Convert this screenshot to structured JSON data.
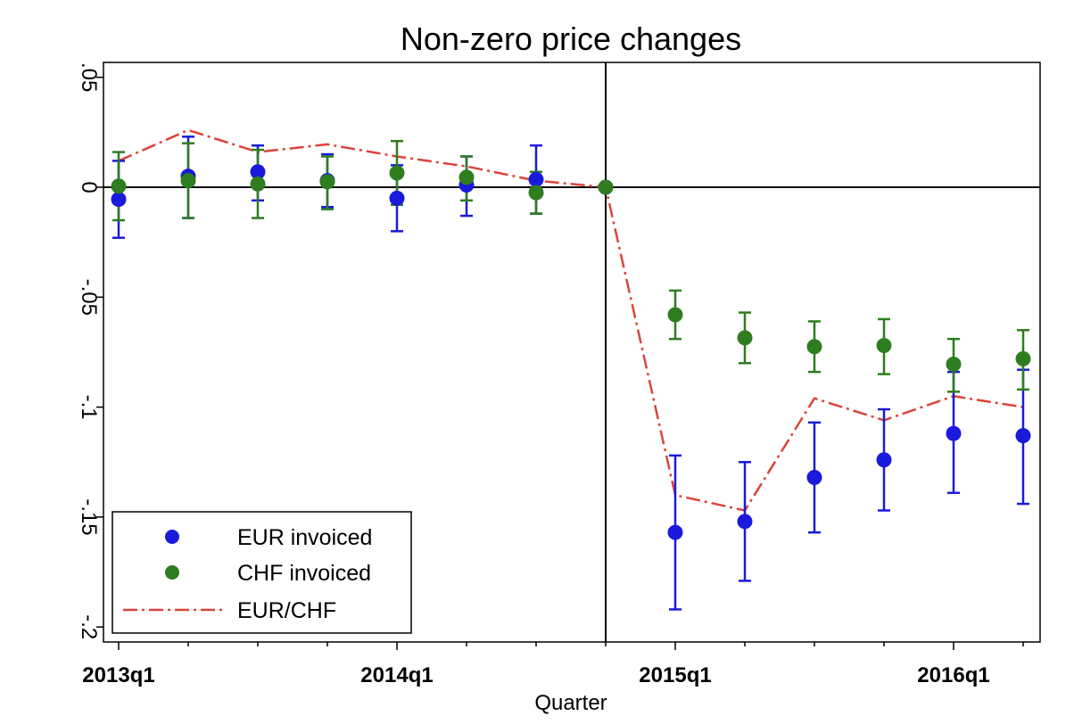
{
  "chart_data": {
    "type": "scatter",
    "title": "Non-zero price changes",
    "xlabel": "Quarter",
    "ylabel": "",
    "x_tick_labels": [
      "2013q1",
      "2014q1",
      "2015q1",
      "2016q1"
    ],
    "y_tick_labels": [
      ".05",
      "0",
      "-.05",
      "-.1",
      "-.15",
      "-.2"
    ],
    "y_tick_values": [
      0.05,
      0,
      -0.05,
      -0.1,
      -0.15,
      -0.2
    ],
    "ylim": [
      -0.2,
      0.05
    ],
    "x": [
      "2013q1",
      "2013q2",
      "2013q3",
      "2013q4",
      "2014q1",
      "2014q2",
      "2014q3",
      "2014q4",
      "2015q1",
      "2015q2",
      "2015q3",
      "2015q4",
      "2016q1",
      "2016q2"
    ],
    "reference_lines": {
      "vertical_at": "2014q4",
      "horizontal_at": 0
    },
    "legend_position": "bottom-left",
    "grid": false,
    "series": [
      {
        "name": "EUR invoiced",
        "kind": "points_with_ci",
        "color": "#1a1adc",
        "values": [
          -0.0055,
          0.005,
          0.007,
          0.003,
          -0.005,
          0.001,
          0.0035,
          0,
          -0.157,
          -0.152,
          -0.132,
          -0.124,
          -0.112,
          -0.113
        ],
        "ci_low": [
          -0.023,
          -0.014,
          -0.006,
          -0.009,
          -0.02,
          -0.013,
          -0.012,
          0,
          -0.192,
          -0.179,
          -0.157,
          -0.147,
          -0.139,
          -0.144
        ],
        "ci_high": [
          0.012,
          0.023,
          0.019,
          0.015,
          0.01,
          0.014,
          0.019,
          0,
          -0.122,
          -0.125,
          -0.107,
          -0.101,
          -0.084,
          -0.083
        ]
      },
      {
        "name": "CHF invoiced",
        "kind": "points_with_ci",
        "color": "#2e7d1f",
        "values": [
          0.0005,
          0.003,
          0.0015,
          0.0025,
          0.0065,
          0.0045,
          -0.0025,
          0,
          -0.058,
          -0.0685,
          -0.0725,
          -0.072,
          -0.0805,
          -0.078
        ],
        "ci_low": [
          -0.015,
          -0.014,
          -0.014,
          -0.01,
          -0.008,
          -0.006,
          -0.012,
          0,
          -0.069,
          -0.08,
          -0.084,
          -0.085,
          -0.093,
          -0.092
        ],
        "ci_high": [
          0.016,
          0.02,
          0.017,
          0.014,
          0.021,
          0.014,
          0.007,
          0,
          -0.047,
          -0.057,
          -0.061,
          -0.06,
          -0.069,
          -0.065
        ]
      },
      {
        "name": "EUR/CHF",
        "kind": "dash_dot_line",
        "color": "#d9453a",
        "values": [
          0.012,
          0.026,
          0.016,
          0.0195,
          0.014,
          0.0095,
          0.003,
          0,
          -0.14,
          -0.147,
          -0.096,
          -0.106,
          -0.095,
          -0.1
        ]
      }
    ]
  }
}
